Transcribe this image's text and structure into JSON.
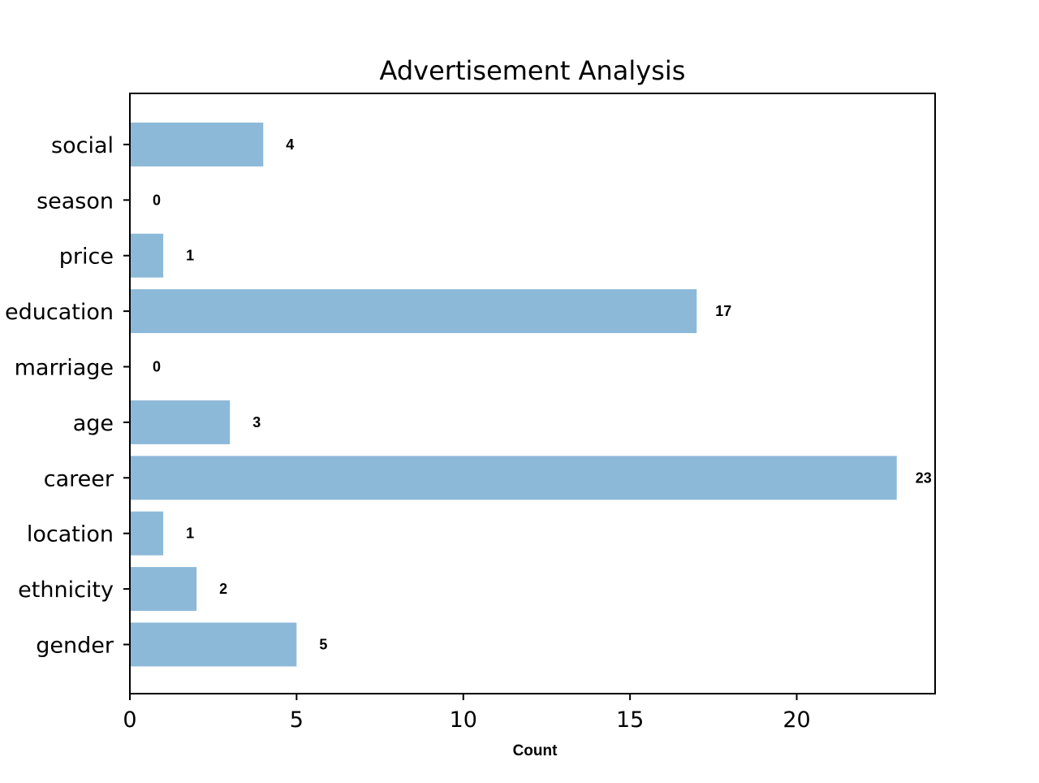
{
  "chart_data": {
    "type": "bar",
    "orientation": "horizontal",
    "title": "Advertisement Analysis",
    "xlabel": "Count",
    "ylabel": "",
    "categories": [
      "gender",
      "ethnicity",
      "location",
      "career",
      "age",
      "marriage",
      "education",
      "price",
      "season",
      "social"
    ],
    "values": [
      5,
      2,
      1,
      23,
      3,
      0,
      17,
      1,
      0,
      4
    ],
    "value_labels": [
      "5",
      "2",
      "1",
      "23",
      "3",
      "0",
      "17",
      "1",
      "0",
      "4"
    ],
    "xlim": [
      0,
      24.15
    ],
    "xticks": [
      0,
      5,
      10,
      15,
      20
    ],
    "xtick_labels": [
      "0",
      "5",
      "10",
      "15",
      "20"
    ],
    "bar_color": "#8db9d9",
    "grid": false,
    "legend": "none"
  }
}
